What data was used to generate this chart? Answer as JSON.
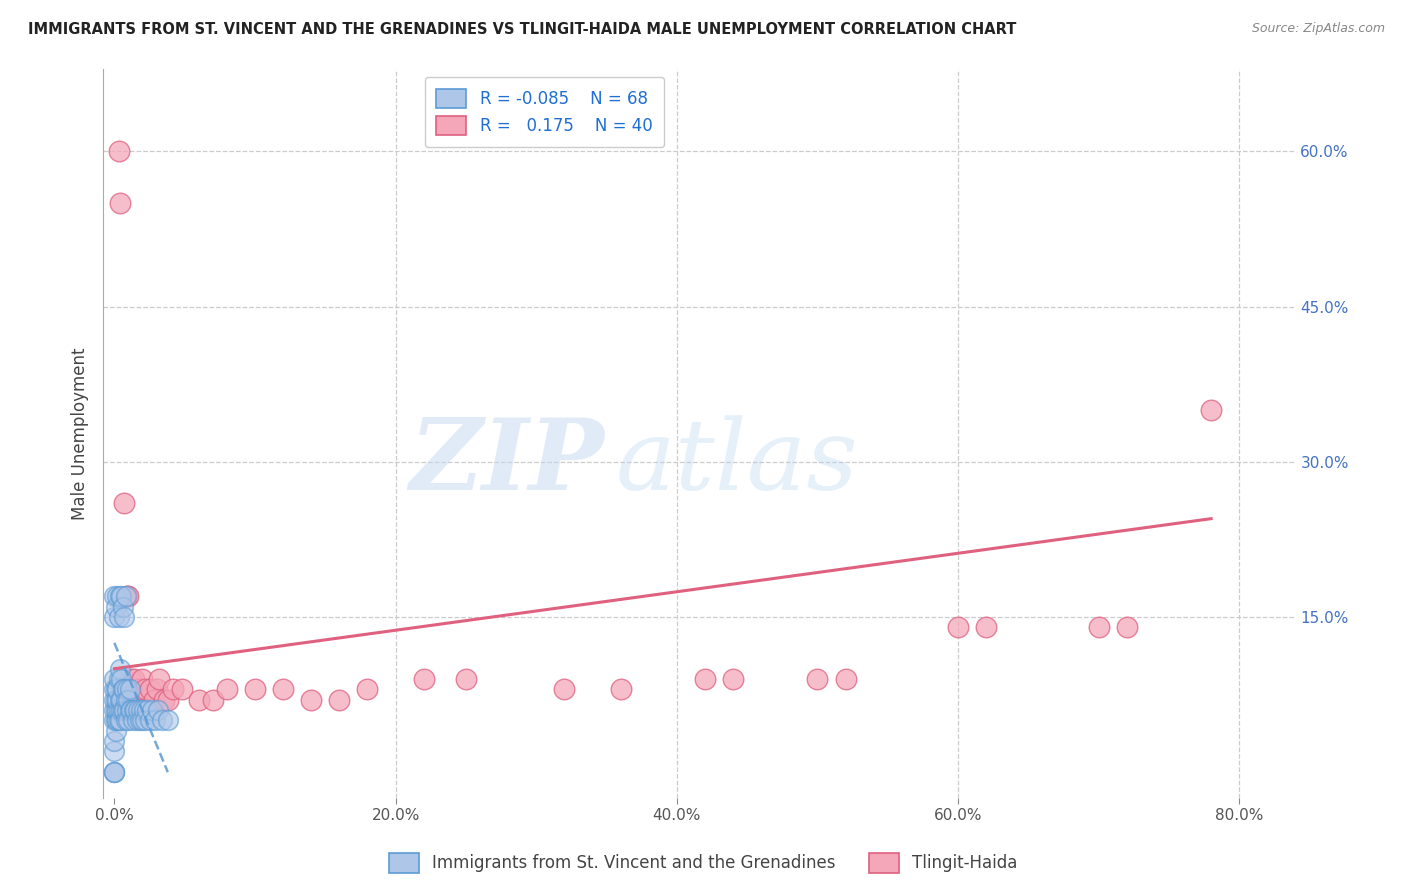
{
  "title": "IMMIGRANTS FROM ST. VINCENT AND THE GRENADINES VS TLINGIT-HAIDA MALE UNEMPLOYMENT CORRELATION CHART",
  "source": "Source: ZipAtlas.com",
  "ylabel": "Male Unemployment",
  "blue_label": "Immigrants from St. Vincent and the Grenadines",
  "pink_label": "Tlingit-Haida",
  "blue_R": -0.085,
  "blue_N": 68,
  "pink_R": 0.175,
  "pink_N": 40,
  "blue_color": "#AEC6E8",
  "pink_color": "#F4A7B9",
  "blue_edge": "#5B9BD5",
  "pink_edge": "#E06080",
  "trend_blue_color": "#5B9BD5",
  "trend_pink_color": "#E06080",
  "xlim": [
    -0.008,
    0.84
  ],
  "ylim": [
    -0.025,
    0.68
  ],
  "xticks": [
    0.0,
    0.2,
    0.4,
    0.6,
    0.8
  ],
  "yticks_right": [
    0.15,
    0.3,
    0.45,
    0.6
  ],
  "blue_x": [
    0.0,
    0.0,
    0.0,
    0.0,
    0.0,
    0.0,
    0.0,
    0.0,
    0.0,
    0.0,
    0.001,
    0.001,
    0.001,
    0.001,
    0.001,
    0.002,
    0.002,
    0.002,
    0.002,
    0.003,
    0.003,
    0.003,
    0.004,
    0.004,
    0.004,
    0.005,
    0.005,
    0.005,
    0.006,
    0.006,
    0.007,
    0.007,
    0.008,
    0.008,
    0.009,
    0.009,
    0.01,
    0.01,
    0.011,
    0.011,
    0.012,
    0.013,
    0.014,
    0.015,
    0.016,
    0.017,
    0.018,
    0.019,
    0.02,
    0.021,
    0.022,
    0.023,
    0.025,
    0.027,
    0.029,
    0.031,
    0.034,
    0.038,
    0.0,
    0.0,
    0.001,
    0.002,
    0.003,
    0.004,
    0.005,
    0.006,
    0.007,
    0.008
  ],
  "blue_y": [
    0.0,
    0.0,
    0.0,
    0.02,
    0.03,
    0.05,
    0.06,
    0.07,
    0.08,
    0.09,
    0.04,
    0.05,
    0.06,
    0.07,
    0.08,
    0.05,
    0.06,
    0.07,
    0.08,
    0.05,
    0.06,
    0.09,
    0.05,
    0.07,
    0.1,
    0.06,
    0.07,
    0.09,
    0.06,
    0.08,
    0.06,
    0.08,
    0.05,
    0.07,
    0.06,
    0.08,
    0.05,
    0.07,
    0.06,
    0.08,
    0.06,
    0.05,
    0.06,
    0.06,
    0.05,
    0.06,
    0.05,
    0.06,
    0.05,
    0.06,
    0.05,
    0.06,
    0.05,
    0.06,
    0.05,
    0.06,
    0.05,
    0.05,
    0.17,
    0.15,
    0.16,
    0.17,
    0.15,
    0.17,
    0.17,
    0.16,
    0.15,
    0.17
  ],
  "pink_x": [
    0.003,
    0.004,
    0.007,
    0.009,
    0.01,
    0.012,
    0.014,
    0.016,
    0.018,
    0.02,
    0.022,
    0.025,
    0.028,
    0.03,
    0.032,
    0.035,
    0.038,
    0.042,
    0.048,
    0.06,
    0.07,
    0.08,
    0.1,
    0.12,
    0.14,
    0.16,
    0.18,
    0.22,
    0.25,
    0.32,
    0.36,
    0.42,
    0.44,
    0.5,
    0.52,
    0.6,
    0.62,
    0.7,
    0.72,
    0.78
  ],
  "pink_y": [
    0.6,
    0.55,
    0.26,
    0.17,
    0.17,
    0.09,
    0.09,
    0.08,
    0.08,
    0.09,
    0.08,
    0.08,
    0.07,
    0.08,
    0.09,
    0.07,
    0.07,
    0.08,
    0.08,
    0.07,
    0.07,
    0.08,
    0.08,
    0.08,
    0.07,
    0.07,
    0.08,
    0.09,
    0.09,
    0.08,
    0.08,
    0.09,
    0.09,
    0.09,
    0.09,
    0.14,
    0.14,
    0.14,
    0.14,
    0.35
  ],
  "pink_trend_x0": 0.0,
  "pink_trend_x1": 0.78,
  "pink_trend_y0": 0.1,
  "pink_trend_y1": 0.245,
  "blue_trend_x0": 0.0,
  "blue_trend_x1": 0.038,
  "blue_trend_y0": 0.125,
  "blue_trend_y1": 0.0,
  "watermark_zip": "ZIP",
  "watermark_atlas": "atlas",
  "figsize": [
    14.06,
    8.92
  ],
  "dpi": 100
}
